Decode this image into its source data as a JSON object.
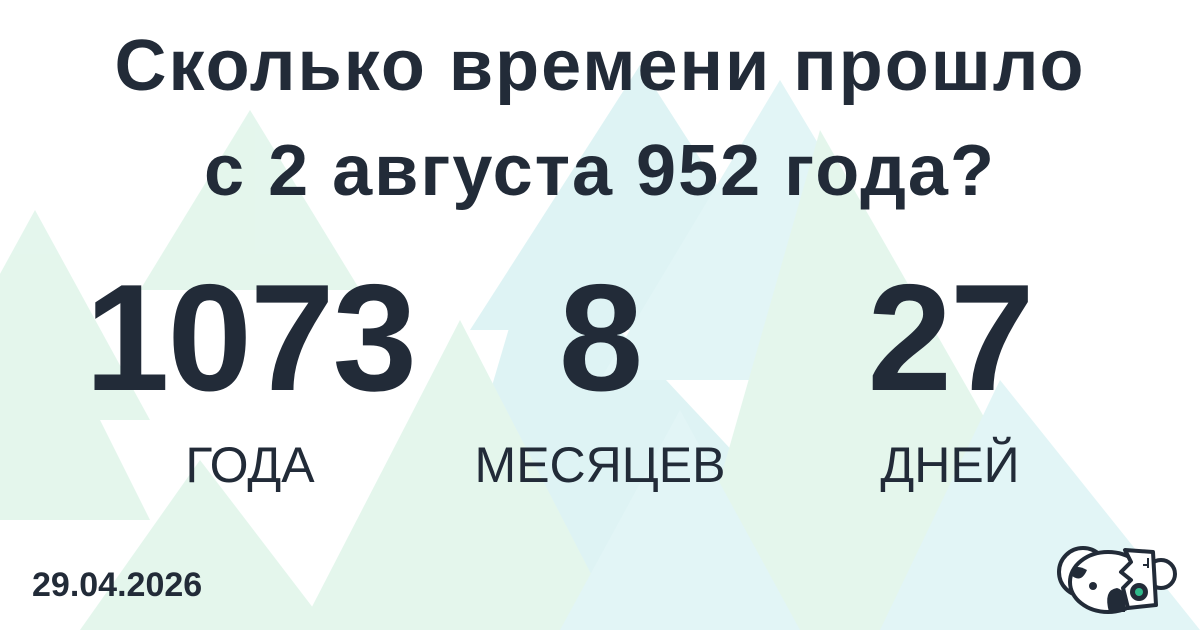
{
  "title": {
    "line1": "Сколько времени прошло",
    "line2": "с 2 августа 952 года?"
  },
  "result": [
    {
      "value": "1073",
      "unit": "ГОДА"
    },
    {
      "value": "8",
      "unit": "МЕСЯЦЕВ"
    },
    {
      "value": "27",
      "unit": "ДНЕЙ"
    }
  ],
  "date": "29.04.2026",
  "logo": "koala-robot-logo",
  "colors": {
    "text": "#222b38",
    "triangle_green": "#bfe8cf",
    "triangle_cyan": "#bfe9ec",
    "logo_accent": "#2fb98a"
  }
}
